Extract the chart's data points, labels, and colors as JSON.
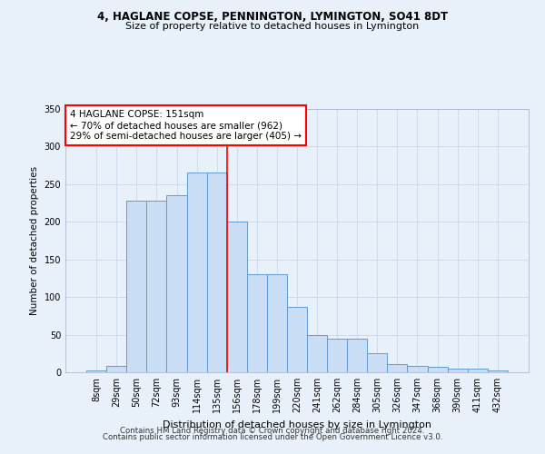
{
  "title1": "4, HAGLANE COPSE, PENNINGTON, LYMINGTON, SO41 8DT",
  "title2": "Size of property relative to detached houses in Lymington",
  "xlabel": "Distribution of detached houses by size in Lymington",
  "ylabel": "Number of detached properties",
  "categories": [
    "8sqm",
    "29sqm",
    "50sqm",
    "72sqm",
    "93sqm",
    "114sqm",
    "135sqm",
    "156sqm",
    "178sqm",
    "199sqm",
    "220sqm",
    "241sqm",
    "262sqm",
    "284sqm",
    "305sqm",
    "326sqm",
    "347sqm",
    "368sqm",
    "390sqm",
    "411sqm",
    "432sqm"
  ],
  "values": [
    3,
    8,
    228,
    228,
    235,
    265,
    265,
    200,
    130,
    130,
    87,
    50,
    45,
    45,
    25,
    11,
    8,
    7,
    5,
    5,
    3
  ],
  "bar_color": "#c9ddf5",
  "bar_edge_color": "#6699cc",
  "vline_color": "red",
  "vline_pos": 6.5,
  "annotation_text": "4 HAGLANE COPSE: 151sqm\n← 70% of detached houses are smaller (962)\n29% of semi-detached houses are larger (405) →",
  "annotation_box_color": "white",
  "annotation_box_edgecolor": "red",
  "footer1": "Contains HM Land Registry data © Crown copyright and database right 2024.",
  "footer2": "Contains public sector information licensed under the Open Government Licence v3.0.",
  "ylim": [
    0,
    350
  ],
  "background_color": "#e8f0fa",
  "grid_color": "#c8d8ee"
}
